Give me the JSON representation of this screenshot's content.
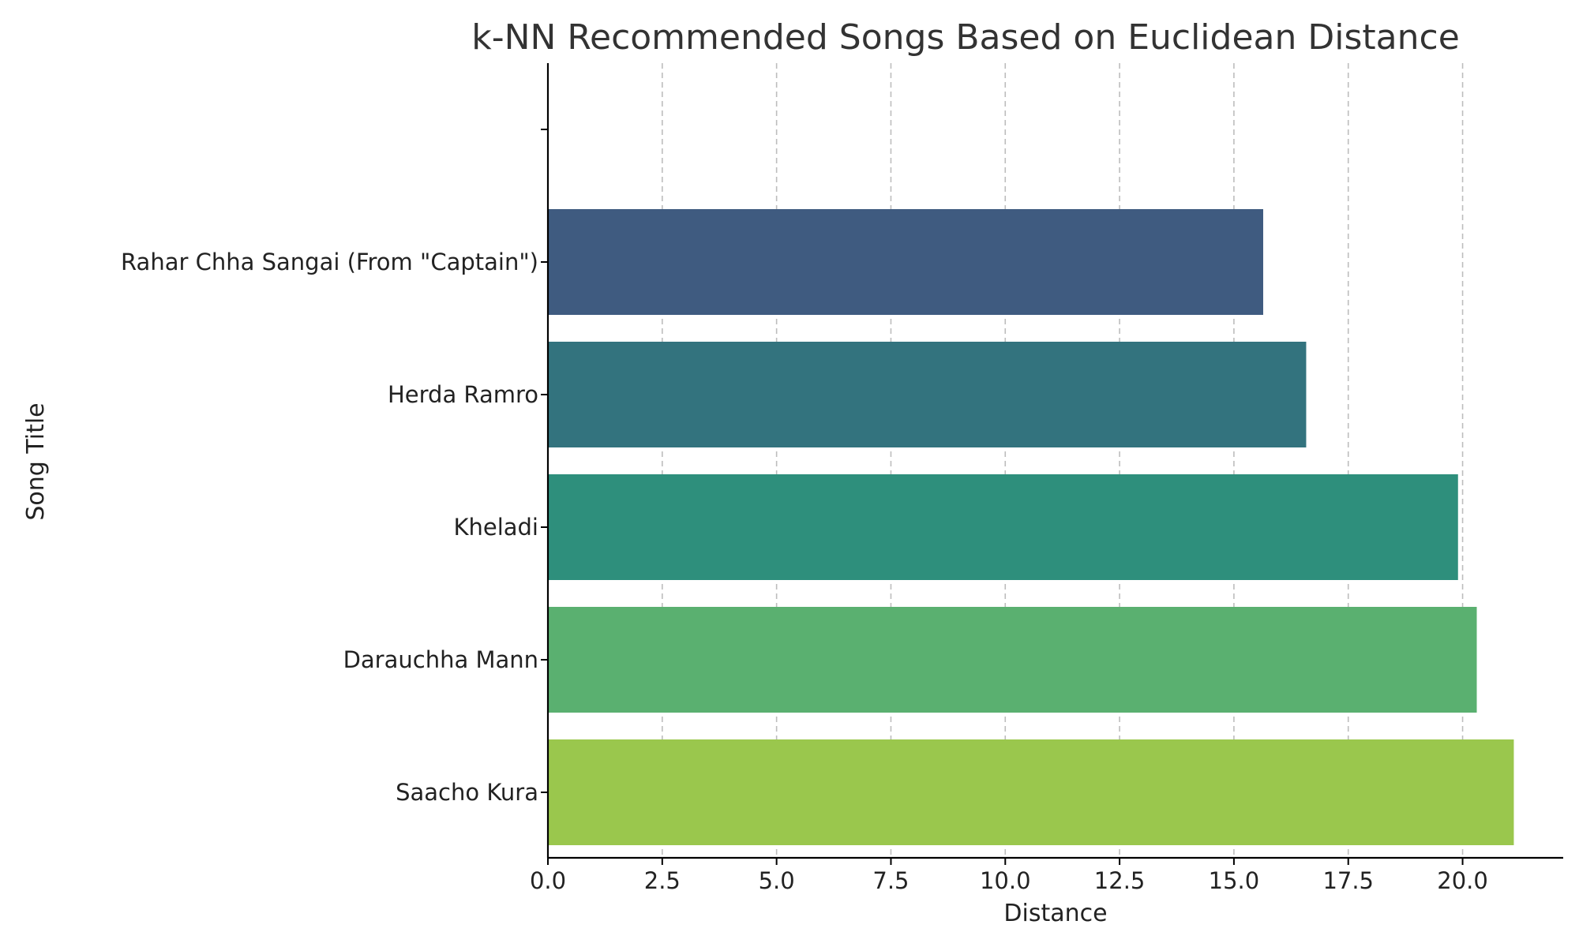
{
  "chart_data": {
    "type": "bar",
    "orientation": "horizontal",
    "title": "k-NN Recommended Songs Based on Euclidean Distance",
    "xlabel": "Distance",
    "ylabel": "Song Title",
    "xlim": [
      0,
      22.2
    ],
    "xticks": [
      "0.0",
      "2.5",
      "5.0",
      "7.5",
      "10.0",
      "12.5",
      "15.0",
      "17.5",
      "20.0"
    ],
    "grid": "vertical-dashed",
    "categories": [
      "",
      "Rahar Chha Sangai (From \"Captain\")",
      "Herda Ramro",
      "Kheladi",
      "Darauchha Mann",
      "Saacho Kura"
    ],
    "values": [
      null,
      15.64,
      16.58,
      19.9,
      20.31,
      21.12
    ],
    "colors": [
      "",
      "#3f5b80",
      "#33737e",
      "#2e8f7c",
      "#5ab070",
      "#9ac74d"
    ]
  }
}
